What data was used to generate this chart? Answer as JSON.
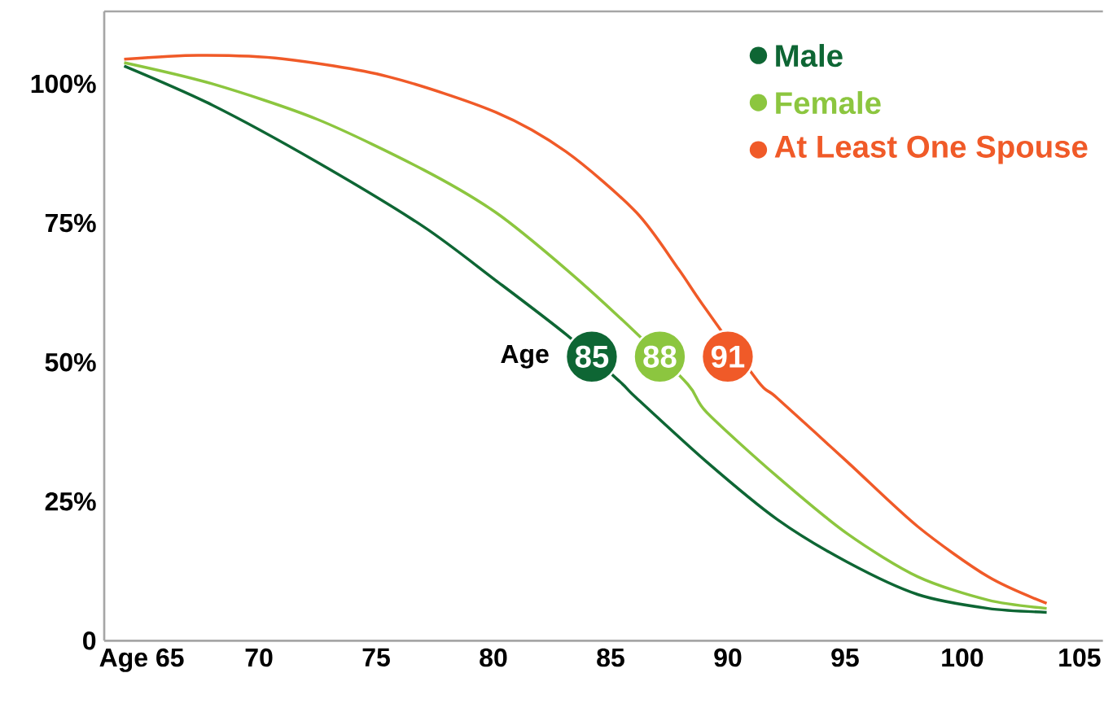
{
  "chart_data": {
    "type": "line",
    "series": [
      {
        "name": "Male",
        "color": "#0e6634",
        "x": [
          64.25,
          68,
          72.5,
          77,
          80.1,
          83.1,
          85.4,
          86.1,
          89.1,
          92.1,
          95.1,
          98.1,
          101.1,
          103.6
        ],
        "values": [
          103.2,
          96.2,
          85.9,
          74.4,
          64.7,
          55,
          46.5,
          43.6,
          32.1,
          21.8,
          14.1,
          8.3,
          5.8,
          5.1
        ]
      },
      {
        "name": "Female",
        "color": "#8cc63f",
        "x": [
          64.25,
          68,
          72.5,
          77,
          80.1,
          83.1,
          85.9,
          88.3,
          89.1,
          92.1,
          95.1,
          98.1,
          101.1,
          103.6
        ],
        "values": [
          103.8,
          100,
          93.6,
          84.6,
          76.9,
          66.7,
          56,
          46,
          41,
          29.5,
          19.2,
          11.5,
          7.3,
          5.8
        ]
      },
      {
        "name": "At Least One Spouse",
        "color": "#f05a28",
        "x": [
          64.25,
          67.4,
          71,
          75.5,
          80.1,
          83.1,
          86.1,
          87.9,
          88.9,
          91.3,
          92.1,
          95.1,
          98.1,
          101.1,
          103.6
        ],
        "values": [
          104.4,
          105.1,
          104.5,
          101.3,
          94.9,
          87.8,
          76.9,
          66.7,
          60.5,
          46.5,
          43.6,
          32.1,
          20.5,
          11.5,
          6.7
        ]
      }
    ],
    "xlim": [
      63.4,
      106
    ],
    "ylim": [
      0,
      113
    ],
    "xticks": [
      {
        "value": 65,
        "label": "Age 65"
      },
      70,
      75,
      80,
      85,
      90,
      95,
      100,
      105
    ],
    "yticks": [
      {
        "value": 0,
        "label": "0"
      },
      {
        "value": 25,
        "label": "25%"
      },
      {
        "value": 50,
        "label": "50%"
      },
      {
        "value": 75,
        "label": "75%"
      },
      {
        "value": 100,
        "label": "100%"
      }
    ],
    "annotations": [
      "Age",
      {
        "text": "85",
        "x": 84.2,
        "y": 51
      },
      {
        "text": "88",
        "x": 87.1,
        "y": 51
      },
      {
        "text": "91",
        "x": 90.0,
        "y": 51
      }
    ],
    "legend": "top right",
    "grid": false,
    "marker": "none",
    "line_style": "solid"
  }
}
